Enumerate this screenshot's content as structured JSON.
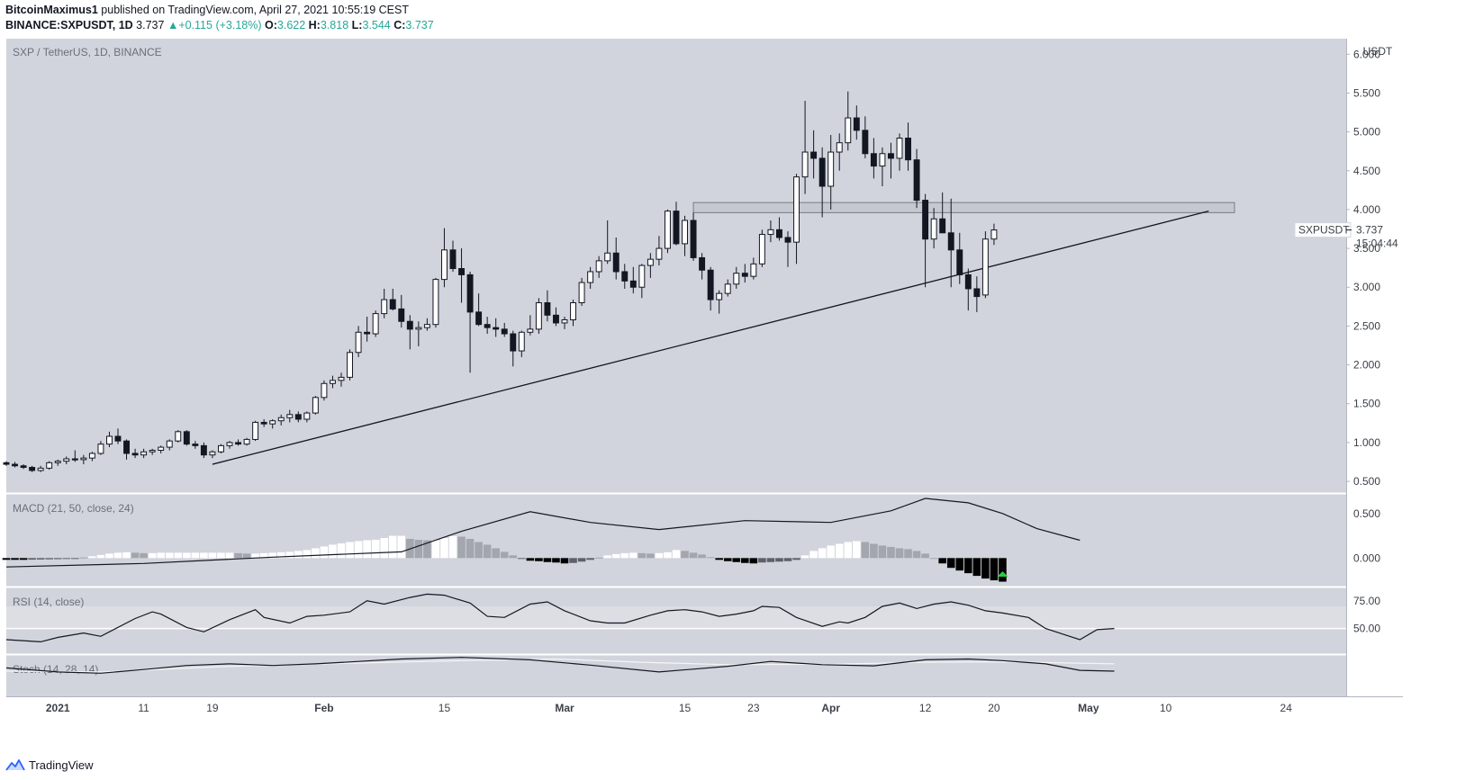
{
  "header": {
    "author": "BitcoinMaximus1",
    "published": "published on TradingView.com, April 27, 2021 10:55:19 CEST",
    "symbol": "BINANCE:SXPUSDT, 1D",
    "last": "3.737",
    "change": "+0.115 (+3.18%)",
    "o_label": "O:",
    "o": "3.622",
    "h_label": "H:",
    "h": "3.818",
    "l_label": "L:",
    "l": "3.544",
    "c_label": "C:",
    "c": "3.737"
  },
  "footer": {
    "brand": "TradingView"
  },
  "chart_data": [
    {
      "type": "candlestick",
      "title": "SXP / TetherUS, 1D, BINANCE",
      "currency": "USDT",
      "x_ticks": [
        "2021",
        "11",
        "19",
        "Feb",
        "15",
        "Mar",
        "15",
        "23",
        "Apr",
        "12",
        "20",
        "May",
        "10",
        "24"
      ],
      "x_tick_days": [
        0,
        10,
        18,
        31,
        45,
        59,
        73,
        81,
        90,
        101,
        109,
        120,
        129,
        143
      ],
      "x_domain_days": [
        -6,
        150
      ],
      "y_ticks": [
        0.5,
        1,
        1.5,
        2,
        2.5,
        3,
        3.5,
        4,
        4.5,
        5,
        5.5,
        6
      ],
      "y_tick_labels": [
        "0.500",
        "1.000",
        "1.500",
        "2.000",
        "2.500",
        "3.000",
        "3.500",
        "4.000",
        "4.500",
        "5.000",
        "5.500",
        "6.000"
      ],
      "ylim": [
        0.35,
        6.2
      ],
      "last_price_label": "SXPUSDT",
      "last_price": "3.737",
      "countdown": "15:04:44",
      "resistance_zone": {
        "low": 3.96,
        "high": 4.09,
        "from_day": 74,
        "to_day": 137
      },
      "ascending_trendline": {
        "from": {
          "day": 18,
          "price": 0.72
        },
        "to": {
          "day": 134,
          "price": 3.98
        }
      },
      "candles_ohlc": [
        [
          0.74,
          0.76,
          0.7,
          0.72
        ],
        [
          0.72,
          0.75,
          0.68,
          0.7
        ],
        [
          0.7,
          0.72,
          0.66,
          0.68
        ],
        [
          0.68,
          0.7,
          0.62,
          0.64
        ],
        [
          0.64,
          0.7,
          0.62,
          0.67
        ],
        [
          0.67,
          0.76,
          0.65,
          0.74
        ],
        [
          0.74,
          0.78,
          0.7,
          0.76
        ],
        [
          0.76,
          0.82,
          0.72,
          0.79
        ],
        [
          0.79,
          0.9,
          0.75,
          0.78
        ],
        [
          0.78,
          0.84,
          0.72,
          0.8
        ],
        [
          0.8,
          0.88,
          0.76,
          0.86
        ],
        [
          0.86,
          1.02,
          0.84,
          0.98
        ],
        [
          0.98,
          1.14,
          0.94,
          1.08
        ],
        [
          1.08,
          1.18,
          0.98,
          1.02
        ],
        [
          1.02,
          1.04,
          0.78,
          0.86
        ],
        [
          0.86,
          0.92,
          0.8,
          0.84
        ],
        [
          0.84,
          0.92,
          0.8,
          0.88
        ],
        [
          0.88,
          0.92,
          0.84,
          0.9
        ],
        [
          0.9,
          0.96,
          0.86,
          0.94
        ],
        [
          0.94,
          1.04,
          0.9,
          1.02
        ],
        [
          1.02,
          1.16,
          1.0,
          1.14
        ],
        [
          1.14,
          1.16,
          0.96,
          0.98
        ],
        [
          0.98,
          1.02,
          0.92,
          0.96
        ],
        [
          0.96,
          1.0,
          0.8,
          0.84
        ],
        [
          0.84,
          0.9,
          0.8,
          0.88
        ],
        [
          0.88,
          0.98,
          0.86,
          0.96
        ],
        [
          0.96,
          1.02,
          0.92,
          1.0
        ],
        [
          1.0,
          1.04,
          0.96,
          0.98
        ],
        [
          0.98,
          1.06,
          0.96,
          1.04
        ],
        [
          1.04,
          1.28,
          1.02,
          1.26
        ],
        [
          1.26,
          1.3,
          1.2,
          1.24
        ],
        [
          1.24,
          1.3,
          1.18,
          1.28
        ],
        [
          1.28,
          1.36,
          1.22,
          1.32
        ],
        [
          1.32,
          1.42,
          1.26,
          1.36
        ],
        [
          1.36,
          1.4,
          1.26,
          1.3
        ],
        [
          1.3,
          1.4,
          1.26,
          1.38
        ],
        [
          1.38,
          1.6,
          1.36,
          1.58
        ],
        [
          1.58,
          1.8,
          1.54,
          1.76
        ],
        [
          1.76,
          1.86,
          1.7,
          1.8
        ],
        [
          1.8,
          1.9,
          1.72,
          1.84
        ],
        [
          1.84,
          2.2,
          1.8,
          2.16
        ],
        [
          2.16,
          2.5,
          2.1,
          2.42
        ],
        [
          2.42,
          2.62,
          2.3,
          2.4
        ],
        [
          2.4,
          2.7,
          2.36,
          2.66
        ],
        [
          2.66,
          2.98,
          2.6,
          2.84
        ],
        [
          2.84,
          2.98,
          2.7,
          2.72
        ],
        [
          2.72,
          2.9,
          2.48,
          2.56
        ],
        [
          2.56,
          2.64,
          2.2,
          2.46
        ],
        [
          2.46,
          2.56,
          2.24,
          2.48
        ],
        [
          2.48,
          2.6,
          2.44,
          2.52
        ],
        [
          2.52,
          3.12,
          2.48,
          3.1
        ],
        [
          3.1,
          3.76,
          3.0,
          3.48
        ],
        [
          3.48,
          3.6,
          3.2,
          3.24
        ],
        [
          3.24,
          3.5,
          2.8,
          3.16
        ],
        [
          3.16,
          3.2,
          1.9,
          2.68
        ],
        [
          2.68,
          2.92,
          2.5,
          2.52
        ],
        [
          2.52,
          2.62,
          2.4,
          2.48
        ],
        [
          2.48,
          2.6,
          2.36,
          2.46
        ],
        [
          2.46,
          2.54,
          2.36,
          2.4
        ],
        [
          2.4,
          2.44,
          1.98,
          2.18
        ],
        [
          2.18,
          2.44,
          2.1,
          2.42
        ],
        [
          2.42,
          2.64,
          2.38,
          2.46
        ],
        [
          2.46,
          2.86,
          2.4,
          2.8
        ],
        [
          2.8,
          2.96,
          2.56,
          2.64
        ],
        [
          2.64,
          2.74,
          2.5,
          2.54
        ],
        [
          2.54,
          2.62,
          2.46,
          2.58
        ],
        [
          2.58,
          2.84,
          2.5,
          2.8
        ],
        [
          2.8,
          3.12,
          2.76,
          3.06
        ],
        [
          3.06,
          3.26,
          2.98,
          3.2
        ],
        [
          3.2,
          3.4,
          3.12,
          3.34
        ],
        [
          3.34,
          3.86,
          3.3,
          3.44
        ],
        [
          3.44,
          3.64,
          3.1,
          3.2
        ],
        [
          3.2,
          3.3,
          2.98,
          3.08
        ],
        [
          3.08,
          3.26,
          2.92,
          3.0
        ],
        [
          3.0,
          3.3,
          2.86,
          3.28
        ],
        [
          3.28,
          3.44,
          3.12,
          3.36
        ],
        [
          3.36,
          3.66,
          3.28,
          3.5
        ],
        [
          3.5,
          4.0,
          3.44,
          3.98
        ],
        [
          3.98,
          4.1,
          3.54,
          3.56
        ],
        [
          3.56,
          3.92,
          3.4,
          3.86
        ],
        [
          3.86,
          3.96,
          3.34,
          3.38
        ],
        [
          3.38,
          3.44,
          3.1,
          3.22
        ],
        [
          3.22,
          3.26,
          2.7,
          2.84
        ],
        [
          2.84,
          2.96,
          2.66,
          2.92
        ],
        [
          2.92,
          3.1,
          2.88,
          3.04
        ],
        [
          3.04,
          3.26,
          2.98,
          3.18
        ],
        [
          3.18,
          3.3,
          3.06,
          3.14
        ],
        [
          3.14,
          3.38,
          3.1,
          3.3
        ],
        [
          3.3,
          3.74,
          3.26,
          3.68
        ],
        [
          3.68,
          3.86,
          3.58,
          3.74
        ],
        [
          3.74,
          3.9,
          3.6,
          3.64
        ],
        [
          3.64,
          3.72,
          3.26,
          3.58
        ],
        [
          3.58,
          4.46,
          3.3,
          4.42
        ],
        [
          4.42,
          5.4,
          4.2,
          4.74
        ],
        [
          4.74,
          5.02,
          4.4,
          4.66
        ],
        [
          4.66,
          4.8,
          3.9,
          4.3
        ],
        [
          4.3,
          4.96,
          4.0,
          4.74
        ],
        [
          4.74,
          4.98,
          4.5,
          4.86
        ],
        [
          4.86,
          5.52,
          4.76,
          5.18
        ],
        [
          5.18,
          5.34,
          4.9,
          5.02
        ],
        [
          5.02,
          5.2,
          4.66,
          4.72
        ],
        [
          4.72,
          4.92,
          4.4,
          4.56
        ],
        [
          4.56,
          4.8,
          4.3,
          4.72
        ],
        [
          4.72,
          4.86,
          4.4,
          4.66
        ],
        [
          4.66,
          4.98,
          4.5,
          4.92
        ],
        [
          4.92,
          5.12,
          4.5,
          4.64
        ],
        [
          4.64,
          4.78,
          4.02,
          4.12
        ],
        [
          4.12,
          4.2,
          3.0,
          3.62
        ],
        [
          3.62,
          4.02,
          3.5,
          3.88
        ],
        [
          3.88,
          4.22,
          3.7,
          3.7
        ],
        [
          3.7,
          4.14,
          3.0,
          3.48
        ],
        [
          3.48,
          3.7,
          3.04,
          3.16
        ],
        [
          3.16,
          3.24,
          2.7,
          2.98
        ],
        [
          2.98,
          3.14,
          2.68,
          2.88
        ],
        [
          2.9,
          3.72,
          2.86,
          3.62
        ],
        [
          3.62,
          3.818,
          3.544,
          3.737
        ]
      ]
    },
    {
      "type": "macd",
      "title": "MACD (21, 50, close, 24)",
      "y_ticks": [
        "0.500",
        "0.000"
      ],
      "ylim": [
        -0.32,
        0.72
      ],
      "histogram": [
        -0.02,
        -0.02,
        -0.02,
        -0.018,
        -0.016,
        -0.014,
        -0.012,
        -0.01,
        -0.008,
        0.006,
        0.02,
        0.035,
        0.05,
        0.06,
        0.065,
        0.06,
        0.055,
        0.055,
        0.06,
        0.06,
        0.06,
        0.06,
        0.06,
        0.06,
        0.06,
        0.06,
        0.06,
        0.055,
        0.05,
        0.05,
        0.055,
        0.06,
        0.065,
        0.07,
        0.08,
        0.09,
        0.11,
        0.13,
        0.15,
        0.165,
        0.18,
        0.19,
        0.2,
        0.205,
        0.225,
        0.25,
        0.25,
        0.215,
        0.205,
        0.2,
        0.2,
        0.225,
        0.245,
        0.24,
        0.215,
        0.18,
        0.15,
        0.11,
        0.07,
        0.03,
        -0.01,
        -0.03,
        -0.035,
        -0.045,
        -0.05,
        -0.06,
        -0.055,
        -0.04,
        -0.02,
        0.005,
        0.03,
        0.045,
        0.055,
        0.06,
        0.055,
        0.05,
        0.055,
        0.065,
        0.09,
        0.08,
        0.06,
        0.04,
        0.01,
        -0.02,
        -0.035,
        -0.045,
        -0.055,
        -0.06,
        -0.05,
        -0.045,
        -0.04,
        -0.035,
        -0.02,
        0.03,
        0.08,
        0.11,
        0.14,
        0.16,
        0.18,
        0.19,
        0.18,
        0.16,
        0.14,
        0.125,
        0.11,
        0.1,
        0.08,
        0.05,
        0.0,
        -0.06,
        -0.11,
        -0.14,
        -0.17,
        -0.2,
        -0.23,
        -0.25,
        -0.265
      ],
      "macd_line_points": [
        [
          -6,
          -0.1
        ],
        [
          10,
          -0.06
        ],
        [
          25,
          0.01
        ],
        [
          40,
          0.07
        ],
        [
          47,
          0.3
        ],
        [
          55,
          0.52
        ],
        [
          62,
          0.4
        ],
        [
          70,
          0.32
        ],
        [
          80,
          0.42
        ],
        [
          90,
          0.4
        ],
        [
          97,
          0.53
        ],
        [
          101,
          0.67
        ],
        [
          106,
          0.62
        ],
        [
          110,
          0.5
        ],
        [
          114,
          0.33
        ],
        [
          119,
          0.2
        ]
      ]
    },
    {
      "type": "line",
      "title": "RSI (14, close)",
      "y_ticks": [
        "75.00",
        "50.00"
      ],
      "ylim": [
        27,
        87
      ],
      "band": [
        50,
        70
      ],
      "rsi_points": [
        [
          -6,
          40
        ],
        [
          -2,
          38
        ],
        [
          0,
          42
        ],
        [
          3,
          46
        ],
        [
          5,
          43
        ],
        [
          9,
          59
        ],
        [
          11,
          65
        ],
        [
          12,
          63
        ],
        [
          15,
          51
        ],
        [
          17,
          47
        ],
        [
          20,
          58
        ],
        [
          23,
          67
        ],
        [
          24,
          60
        ],
        [
          27,
          55
        ],
        [
          29,
          61
        ],
        [
          31,
          62
        ],
        [
          34,
          65
        ],
        [
          36,
          75
        ],
        [
          38,
          72
        ],
        [
          41,
          78
        ],
        [
          43,
          81
        ],
        [
          45,
          80
        ],
        [
          48,
          73
        ],
        [
          50,
          61
        ],
        [
          52,
          60
        ],
        [
          55,
          72
        ],
        [
          57,
          74
        ],
        [
          59,
          66
        ],
        [
          62,
          57
        ],
        [
          64,
          55
        ],
        [
          66,
          55
        ],
        [
          69,
          62
        ],
        [
          71,
          66
        ],
        [
          73,
          67
        ],
        [
          75,
          65
        ],
        [
          77,
          61
        ],
        [
          79,
          63
        ],
        [
          81,
          66
        ],
        [
          82,
          70
        ],
        [
          84,
          69
        ],
        [
          86,
          60
        ],
        [
          89,
          52
        ],
        [
          91,
          56
        ],
        [
          92,
          55
        ],
        [
          94,
          60
        ],
        [
          96,
          70
        ],
        [
          98,
          73
        ],
        [
          100,
          68
        ],
        [
          102,
          72
        ],
        [
          104,
          74
        ],
        [
          106,
          71
        ],
        [
          108,
          66
        ],
        [
          110,
          64
        ],
        [
          113,
          60
        ],
        [
          115,
          50
        ],
        [
          117,
          45
        ],
        [
          119,
          40
        ],
        [
          121,
          49
        ],
        [
          123,
          50
        ]
      ]
    },
    {
      "type": "line",
      "title": "Stoch (14, 28, 14)",
      "ylim": [
        0,
        100
      ],
      "k_points": [
        [
          -6,
          68
        ],
        [
          0,
          58
        ],
        [
          5,
          55
        ],
        [
          10,
          64
        ],
        [
          15,
          74
        ],
        [
          20,
          78
        ],
        [
          25,
          74
        ],
        [
          30,
          78
        ],
        [
          35,
          84
        ],
        [
          40,
          90
        ],
        [
          47,
          94
        ],
        [
          55,
          88
        ],
        [
          62,
          75
        ],
        [
          70,
          58
        ],
        [
          78,
          72
        ],
        [
          83,
          84
        ],
        [
          89,
          76
        ],
        [
          95,
          73
        ],
        [
          101,
          88
        ],
        [
          106,
          90
        ],
        [
          110,
          86
        ],
        [
          115,
          78
        ],
        [
          119,
          62
        ],
        [
          123,
          60
        ]
      ],
      "d_points": [
        [
          -6,
          60
        ],
        [
          5,
          58
        ],
        [
          20,
          72
        ],
        [
          35,
          80
        ],
        [
          47,
          86
        ],
        [
          58,
          90
        ],
        [
          68,
          82
        ],
        [
          78,
          76
        ],
        [
          90,
          77
        ],
        [
          101,
          82
        ],
        [
          110,
          83
        ],
        [
          123,
          78
        ]
      ]
    }
  ]
}
